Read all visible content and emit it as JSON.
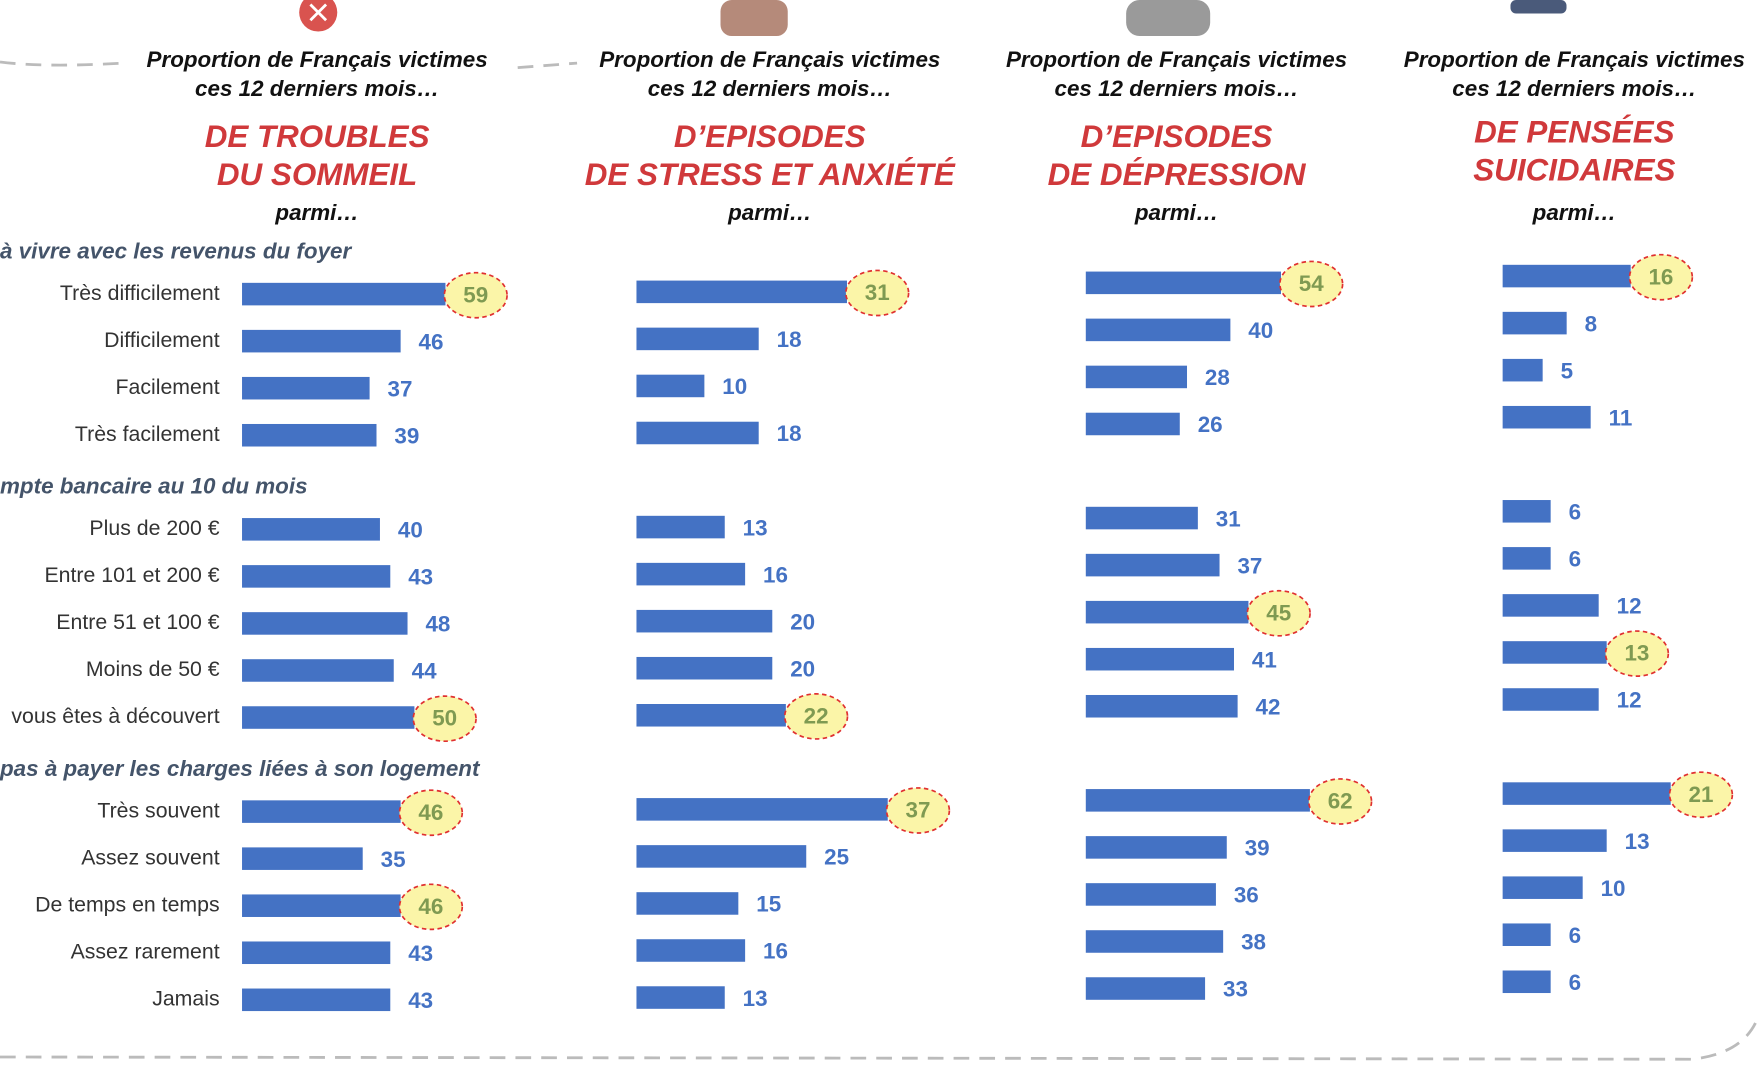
{
  "chart_data": [
    {
      "type": "bar",
      "subtitle": [
        "Proportion de Français victimes",
        "ces 12 derniers mois…"
      ],
      "title": [
        "DE TROUBLES",
        "DU SOMMEIL"
      ],
      "note": "parmi…",
      "color": "#4472c4",
      "xlim": [
        0,
        65
      ],
      "groups": [
        {
          "label": "à vivre avec les revenus du foyer",
          "categories": [
            "Très difficilement",
            "Difficilement",
            "Facilement",
            "Très facilement"
          ],
          "values": [
            59,
            46,
            37,
            39
          ]
        },
        {
          "label": "mpte bancaire au 10 du mois",
          "categories": [
            "Plus de 200 €",
            "Entre 101 et 200 €",
            "Entre 51 et 100 €",
            "Moins de 50 €",
            "vous êtes à découvert"
          ],
          "values": [
            40,
            43,
            48,
            44,
            50
          ]
        },
        {
          "label": "pas à payer les charges liées à son logement",
          "categories": [
            "Très souvent",
            "Assez souvent",
            "De temps en temps",
            "Assez rarement",
            "Jamais"
          ],
          "values": [
            46,
            35,
            46,
            43,
            43
          ]
        }
      ]
    },
    {
      "type": "bar",
      "subtitle": [
        "Proportion de Français victimes",
        "ces 12 derniers mois…"
      ],
      "title": [
        "D’EPISODES",
        "DE STRESS ET ANXIÉTÉ"
      ],
      "note": "parmi…",
      "color": "#4472c4",
      "xlim": [
        0,
        33
      ],
      "groups": [
        {
          "values": [
            31,
            18,
            10,
            18
          ]
        },
        {
          "values": [
            13,
            16,
            20,
            20,
            22
          ]
        },
        {
          "values": [
            37,
            25,
            15,
            16,
            13
          ]
        }
      ]
    },
    {
      "type": "bar",
      "subtitle": [
        "Proportion de Français victimes",
        "ces 12 derniers mois…"
      ],
      "title": [
        "D’EPISODES",
        "DE DÉPRESSION"
      ],
      "note": "parmi…",
      "color": "#4472c4",
      "xlim": [
        0,
        62
      ],
      "groups": [
        {
          "values": [
            54,
            40,
            28,
            26
          ]
        },
        {
          "values": [
            31,
            37,
            45,
            41,
            42
          ]
        },
        {
          "values": [
            62,
            39,
            36,
            38,
            33
          ]
        }
      ]
    },
    {
      "type": "bar",
      "subtitle": [
        "Proportion de Français victimes",
        "ces 12 derniers mois…"
      ],
      "title": [
        "DE PENSÉES",
        "SUICIDAIRES"
      ],
      "note": "parmi…",
      "color": "#4472c4",
      "xlim": [
        0,
        28
      ],
      "groups": [
        {
          "values": [
            16,
            8,
            5,
            11
          ]
        },
        {
          "values": [
            6,
            6,
            12,
            13,
            12
          ]
        },
        {
          "values": [
            21,
            13,
            10,
            6,
            6
          ]
        }
      ]
    }
  ]
}
